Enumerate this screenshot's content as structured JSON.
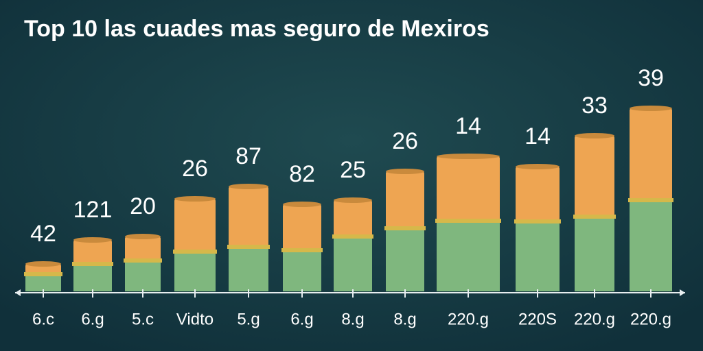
{
  "chart_data": {
    "type": "stacked_bar",
    "title": "Top 10 las cuades mas seguro de Mexiros",
    "categories": [
      "6.c",
      "6.g",
      "5.c",
      "Vidto",
      "5.g",
      "6.g",
      "8.g",
      "8.g",
      "220.g",
      "220S",
      "220.g",
      "220.g"
    ],
    "series": [
      {
        "color": "#7fb77e",
        "values": [
          25,
          40,
          45,
          58,
          65,
          60,
          80,
          92,
          103,
          102,
          109,
          133
        ]
      },
      {
        "color": "#eea552",
        "values": [
          15,
          35,
          35,
          77,
          88,
          67,
          53,
          83,
          94,
          80,
          118,
          134
        ]
      }
    ],
    "annotations": [
      "42",
      "121",
      "20",
      "26",
      "87",
      "82",
      "25",
      "26",
      "14",
      "14",
      "33",
      "39"
    ],
    "ylim": [
      0,
      300
    ]
  }
}
